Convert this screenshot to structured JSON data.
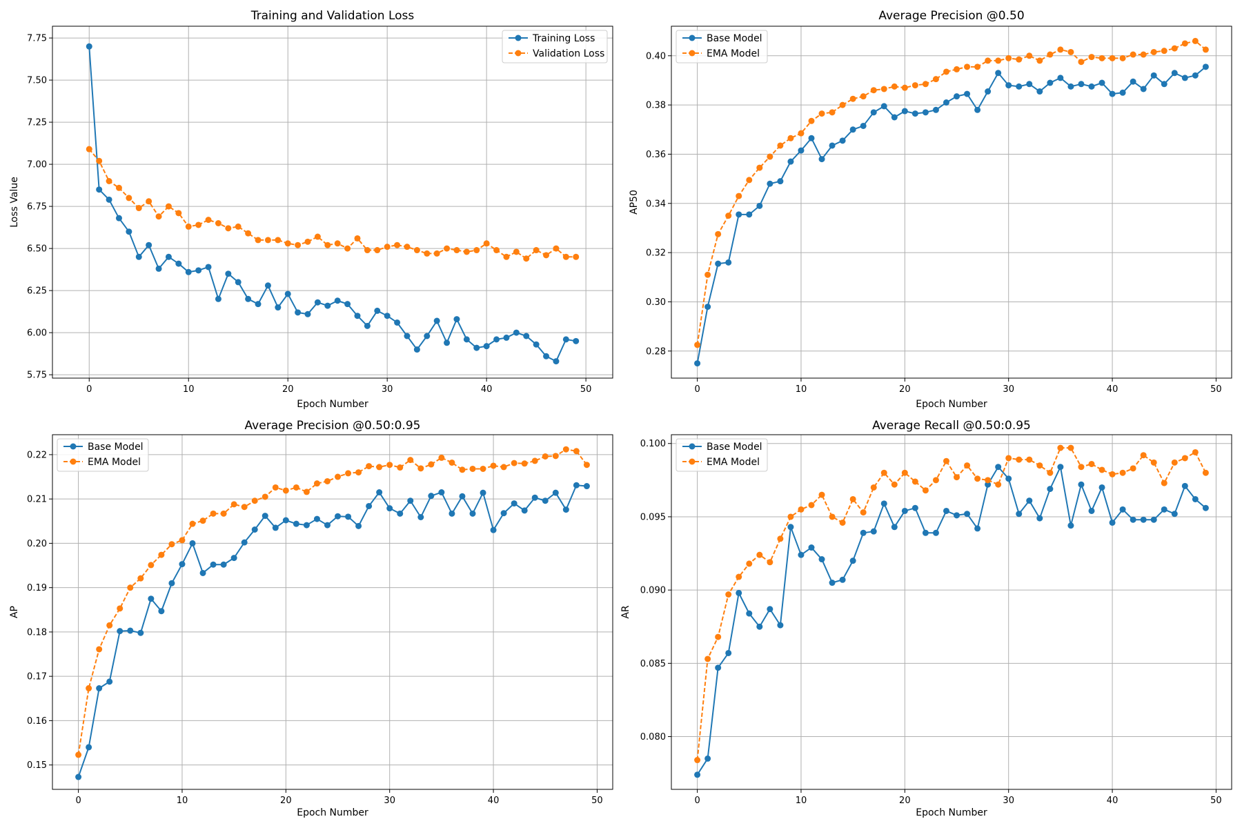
{
  "colors": {
    "blue": "#1f77b4",
    "orange": "#ff7f0e",
    "grid": "#b0b0b0"
  },
  "chart_data": [
    {
      "type": "line",
      "title": "Training and Validation Loss",
      "xlabel": "Epoch Number",
      "ylabel": "Loss Value",
      "xlim": [
        -3.7,
        52.7
      ],
      "ylim": [
        5.73,
        7.82
      ],
      "xticks": [
        0,
        10,
        20,
        30,
        40,
        50
      ],
      "yticks": [
        5.75,
        6.0,
        6.25,
        6.5,
        6.75,
        7.0,
        7.25,
        7.5,
        7.75
      ],
      "xtick_labels": [
        "0",
        "10",
        "20",
        "30",
        "40",
        "50"
      ],
      "ytick_labels": [
        "5.75",
        "6.00",
        "6.25",
        "6.50",
        "6.75",
        "7.00",
        "7.25",
        "7.50",
        "7.75"
      ],
      "grid": true,
      "legend_loc": "upper-right",
      "x": [
        0,
        1,
        2,
        3,
        4,
        5,
        6,
        7,
        8,
        9,
        10,
        11,
        12,
        13,
        14,
        15,
        16,
        17,
        18,
        19,
        20,
        21,
        22,
        23,
        24,
        25,
        26,
        27,
        28,
        29,
        30,
        31,
        32,
        33,
        34,
        35,
        36,
        37,
        38,
        39,
        40,
        41,
        42,
        43,
        44,
        45,
        46,
        47,
        48,
        49
      ],
      "series": [
        {
          "name": "Training Loss",
          "color": "#1f77b4",
          "dashed": false,
          "values": [
            7.7,
            6.85,
            6.79,
            6.68,
            6.6,
            6.45,
            6.52,
            6.38,
            6.45,
            6.41,
            6.36,
            6.37,
            6.39,
            6.2,
            6.35,
            6.3,
            6.2,
            6.17,
            6.28,
            6.15,
            6.23,
            6.12,
            6.11,
            6.18,
            6.16,
            6.19,
            6.17,
            6.1,
            6.04,
            6.13,
            6.1,
            6.06,
            5.98,
            5.9,
            5.98,
            6.07,
            5.94,
            6.08,
            5.96,
            5.91,
            5.92,
            5.96,
            5.97,
            6.0,
            5.98,
            5.93,
            5.86,
            5.83,
            5.96,
            5.95
          ]
        },
        {
          "name": "Validation Loss",
          "color": "#ff7f0e",
          "dashed": true,
          "values": [
            7.09,
            7.02,
            6.9,
            6.86,
            6.8,
            6.74,
            6.78,
            6.69,
            6.75,
            6.71,
            6.63,
            6.64,
            6.67,
            6.65,
            6.62,
            6.63,
            6.59,
            6.55,
            6.55,
            6.55,
            6.53,
            6.52,
            6.54,
            6.57,
            6.52,
            6.53,
            6.5,
            6.56,
            6.49,
            6.49,
            6.51,
            6.52,
            6.51,
            6.49,
            6.47,
            6.47,
            6.5,
            6.49,
            6.48,
            6.49,
            6.53,
            6.49,
            6.45,
            6.48,
            6.44,
            6.49,
            6.46,
            6.5,
            6.45,
            6.45
          ]
        }
      ]
    },
    {
      "type": "line",
      "title": "Average Precision @0.50",
      "xlabel": "Epoch Number",
      "ylabel": "AP50",
      "xlim": [
        -2.5,
        51.5
      ],
      "ylim": [
        0.269,
        0.412
      ],
      "xticks": [
        0,
        10,
        20,
        30,
        40,
        50
      ],
      "yticks": [
        0.28,
        0.3,
        0.32,
        0.34,
        0.36,
        0.38,
        0.4
      ],
      "xtick_labels": [
        "0",
        "10",
        "20",
        "30",
        "40",
        "50"
      ],
      "ytick_labels": [
        "0.28",
        "0.30",
        "0.32",
        "0.34",
        "0.36",
        "0.38",
        "0.40"
      ],
      "grid": true,
      "legend_loc": "upper-left",
      "x": [
        0,
        1,
        2,
        3,
        4,
        5,
        6,
        7,
        8,
        9,
        10,
        11,
        12,
        13,
        14,
        15,
        16,
        17,
        18,
        19,
        20,
        21,
        22,
        23,
        24,
        25,
        26,
        27,
        28,
        29,
        30,
        31,
        32,
        33,
        34,
        35,
        36,
        37,
        38,
        39,
        40,
        41,
        42,
        43,
        44,
        45,
        46,
        47,
        48,
        49
      ],
      "series": [
        {
          "name": "Base Model",
          "color": "#1f77b4",
          "dashed": false,
          "values": [
            0.275,
            0.298,
            0.3155,
            0.316,
            0.3355,
            0.3355,
            0.339,
            0.348,
            0.349,
            0.357,
            0.3615,
            0.3665,
            0.358,
            0.3635,
            0.3655,
            0.37,
            0.3715,
            0.377,
            0.3795,
            0.375,
            0.3775,
            0.3765,
            0.377,
            0.378,
            0.381,
            0.3835,
            0.3845,
            0.378,
            0.3855,
            0.393,
            0.388,
            0.3875,
            0.3885,
            0.3855,
            0.389,
            0.391,
            0.3875,
            0.3885,
            0.3875,
            0.389,
            0.3845,
            0.385,
            0.3895,
            0.3865,
            0.392,
            0.3885,
            0.393,
            0.391,
            0.392,
            0.3955
          ]
        },
        {
          "name": "EMA Model",
          "color": "#ff7f0e",
          "dashed": true,
          "values": [
            0.2825,
            0.311,
            0.3275,
            0.335,
            0.343,
            0.3495,
            0.3545,
            0.359,
            0.3635,
            0.3665,
            0.3685,
            0.3735,
            0.3765,
            0.377,
            0.38,
            0.3825,
            0.3835,
            0.386,
            0.3865,
            0.3875,
            0.387,
            0.388,
            0.3885,
            0.3905,
            0.3935,
            0.3945,
            0.3955,
            0.3955,
            0.398,
            0.398,
            0.399,
            0.3985,
            0.4,
            0.398,
            0.4005,
            0.4025,
            0.4015,
            0.3975,
            0.3995,
            0.399,
            0.399,
            0.399,
            0.4005,
            0.4005,
            0.4015,
            0.402,
            0.403,
            0.405,
            0.406,
            0.4025
          ]
        }
      ]
    },
    {
      "type": "line",
      "title": "Average Precision @0.50:0.95",
      "xlabel": "Epoch Number",
      "ylabel": "AP",
      "xlim": [
        -2.5,
        51.5
      ],
      "ylim": [
        0.1445,
        0.2245
      ],
      "xticks": [
        0,
        10,
        20,
        30,
        40,
        50
      ],
      "yticks": [
        0.15,
        0.16,
        0.17,
        0.18,
        0.19,
        0.2,
        0.21,
        0.22
      ],
      "xtick_labels": [
        "0",
        "10",
        "20",
        "30",
        "40",
        "50"
      ],
      "ytick_labels": [
        "0.15",
        "0.16",
        "0.17",
        "0.18",
        "0.19",
        "0.20",
        "0.21",
        "0.22"
      ],
      "grid": true,
      "legend_loc": "upper-left",
      "x": [
        0,
        1,
        2,
        3,
        4,
        5,
        6,
        7,
        8,
        9,
        10,
        11,
        12,
        13,
        14,
        15,
        16,
        17,
        18,
        19,
        20,
        21,
        22,
        23,
        24,
        25,
        26,
        27,
        28,
        29,
        30,
        31,
        32,
        33,
        34,
        35,
        36,
        37,
        38,
        39,
        40,
        41,
        42,
        43,
        44,
        45,
        46,
        47,
        48,
        49
      ],
      "series": [
        {
          "name": "Base Model",
          "color": "#1f77b4",
          "dashed": false,
          "values": [
            0.1473,
            0.154,
            0.1673,
            0.1688,
            0.1802,
            0.1803,
            0.1798,
            0.1875,
            0.1847,
            0.191,
            0.1953,
            0.2,
            0.1933,
            0.1952,
            0.1952,
            0.1967,
            0.2002,
            0.2031,
            0.2062,
            0.2035,
            0.2052,
            0.2044,
            0.2041,
            0.2055,
            0.2041,
            0.2061,
            0.206,
            0.2039,
            0.2084,
            0.2115,
            0.2079,
            0.2067,
            0.2096,
            0.2059,
            0.2107,
            0.2115,
            0.2067,
            0.2106,
            0.2067,
            0.2114,
            0.203,
            0.2068,
            0.209,
            0.2074,
            0.2103,
            0.2096,
            0.2114,
            0.2076,
            0.2131,
            0.2129
          ]
        },
        {
          "name": "EMA Model",
          "color": "#ff7f0e",
          "dashed": true,
          "values": [
            0.1523,
            0.1673,
            0.1761,
            0.1815,
            0.1853,
            0.19,
            0.1921,
            0.1951,
            0.1974,
            0.1998,
            0.2007,
            0.2044,
            0.2051,
            0.2067,
            0.2067,
            0.2088,
            0.2082,
            0.2096,
            0.2105,
            0.2126,
            0.2119,
            0.2126,
            0.2116,
            0.2135,
            0.214,
            0.215,
            0.2158,
            0.216,
            0.2174,
            0.2172,
            0.2177,
            0.2171,
            0.2188,
            0.2169,
            0.2178,
            0.2193,
            0.2182,
            0.2166,
            0.2168,
            0.2168,
            0.2175,
            0.2172,
            0.2181,
            0.218,
            0.2186,
            0.2196,
            0.2197,
            0.2212,
            0.2208,
            0.2177
          ]
        }
      ]
    },
    {
      "type": "line",
      "title": "Average Recall @0.50:0.95",
      "xlabel": "Epoch Number",
      "ylabel": "AR",
      "xlim": [
        -2.5,
        51.5
      ],
      "ylim": [
        0.0764,
        0.1006
      ],
      "xticks": [
        0,
        10,
        20,
        30,
        40,
        50
      ],
      "yticks": [
        0.08,
        0.085,
        0.09,
        0.095,
        0.1
      ],
      "xtick_labels": [
        "0",
        "10",
        "20",
        "30",
        "40",
        "50"
      ],
      "ytick_labels": [
        "0.080",
        "0.085",
        "0.090",
        "0.095",
        "0.100"
      ],
      "grid": true,
      "legend_loc": "upper-left",
      "x": [
        0,
        1,
        2,
        3,
        4,
        5,
        6,
        7,
        8,
        9,
        10,
        11,
        12,
        13,
        14,
        15,
        16,
        17,
        18,
        19,
        20,
        21,
        22,
        23,
        24,
        25,
        26,
        27,
        28,
        29,
        30,
        31,
        32,
        33,
        34,
        35,
        36,
        37,
        38,
        39,
        40,
        41,
        42,
        43,
        44,
        45,
        46,
        47,
        48,
        49
      ],
      "series": [
        {
          "name": "Base Model",
          "color": "#1f77b4",
          "dashed": false,
          "values": [
            0.0774,
            0.0785,
            0.0847,
            0.0857,
            0.0898,
            0.0884,
            0.0875,
            0.0887,
            0.0876,
            0.0943,
            0.0924,
            0.0929,
            0.0921,
            0.0905,
            0.0907,
            0.092,
            0.0939,
            0.094,
            0.0959,
            0.0943,
            0.0954,
            0.0956,
            0.0939,
            0.0939,
            0.0954,
            0.0951,
            0.0952,
            0.0942,
            0.0972,
            0.0984,
            0.0976,
            0.0952,
            0.0961,
            0.0949,
            0.0969,
            0.0984,
            0.0944,
            0.0972,
            0.0954,
            0.097,
            0.0946,
            0.0955,
            0.0948,
            0.0948,
            0.0948,
            0.0955,
            0.0952,
            0.0971,
            0.0962,
            0.0956
          ]
        },
        {
          "name": "EMA Model",
          "color": "#ff7f0e",
          "dashed": true,
          "values": [
            0.0784,
            0.0853,
            0.0868,
            0.0897,
            0.0909,
            0.0918,
            0.0924,
            0.0919,
            0.0935,
            0.095,
            0.0955,
            0.0958,
            0.0965,
            0.095,
            0.0946,
            0.0962,
            0.0953,
            0.097,
            0.098,
            0.0972,
            0.098,
            0.0974,
            0.0968,
            0.0975,
            0.0988,
            0.0977,
            0.0985,
            0.0976,
            0.0975,
            0.0972,
            0.099,
            0.0989,
            0.0989,
            0.0985,
            0.098,
            0.0997,
            0.0997,
            0.0984,
            0.0986,
            0.0982,
            0.0979,
            0.098,
            0.0983,
            0.0992,
            0.0987,
            0.0973,
            0.0987,
            0.099,
            0.0994,
            0.098
          ]
        }
      ]
    }
  ]
}
